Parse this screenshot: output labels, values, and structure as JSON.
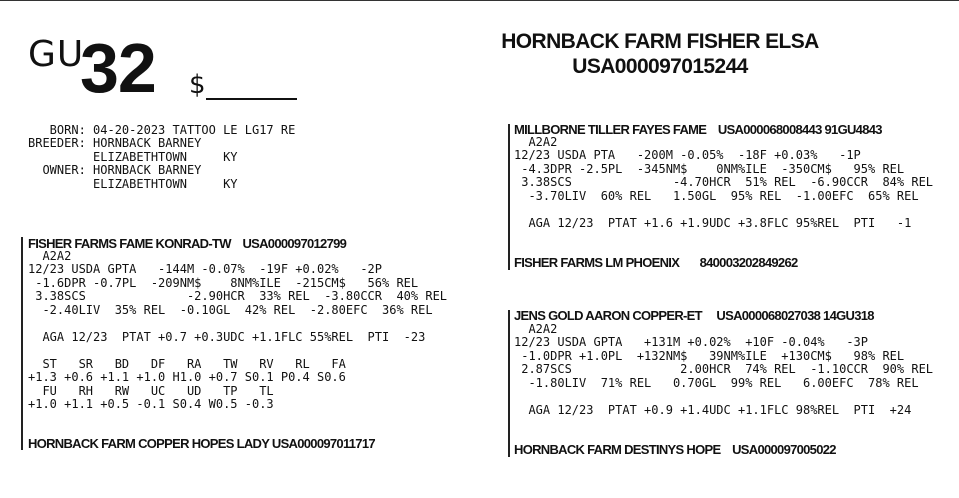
{
  "header": {
    "prefix": "GU",
    "number": "32",
    "price_symbol": "$",
    "title_name": "HORNBACK FARM FISHER ELSA",
    "title_id": "USA000097015244"
  },
  "info_lines": [
    "   BORN: 04-20-2023 TATTOO LE LG17 RE",
    "BREEDER: HORNBACK BARNEY",
    "         ELIZABETHTOWN     KY",
    "  OWNER: HORNBACK BARNEY",
    "         ELIZABETHTOWN     KY"
  ],
  "sire": {
    "heading": "FISHER FARMS FAME KONRAD-TW    USA000097012799",
    "lines": [
      "  A2A2",
      "12/23 USDA GPTA   -144M -0.07%  -19F +0.02%   -2P",
      " -1.6DPR -0.7PL  -209NM$    8NM%ILE  -215CM$   56% REL",
      " 3.38SCS              -2.90HCR  33% REL  -3.80CCR  40% REL",
      "  -2.40LIV  35% REL  -0.10GL  42% REL  -2.80EFC  36% REL",
      "",
      "  AGA 12/23  PTAT +0.7 +0.3UDC +1.1FLC 55%REL  PTI  -23",
      "",
      "  ST   SR   BD   DF   RA   TW   RV   RL   FA",
      "+1.3 +0.6 +1.1 +1.0 H1.0 +0.7 S0.1 P0.4 S0.6",
      "  FU   RH   RW   UC   UD   TP   TL",
      "+1.0 +1.1 +0.5 -0.1 S0.4 W0.5 -0.3"
    ]
  },
  "dam": {
    "heading": "HORNBACK FARM COPPER HOPES LADY USA000097011717"
  },
  "sire_sire": {
    "heading": "MILLBORNE TILLER FAYES FAME    USA000068008443 91GU4843",
    "lines": [
      "  A2A2",
      "12/23 USDA PTA   -200M -0.05%  -18F +0.03%   -1P",
      " -4.3DPR -2.5PL  -345NM$    0NM%ILE  -350CM$   95% REL",
      " 3.38SCS              -4.70HCR  51% REL  -6.90CCR  84% REL",
      "  -3.70LIV  60% REL   1.50GL  95% REL  -1.00EFC  65% REL",
      "",
      "  AGA 12/23  PTAT +1.6 +1.9UDC +3.8FLC 95%REL  PTI   -1"
    ]
  },
  "sire_dam": {
    "heading": "FISHER FARMS LM PHOENIX       840003202849262"
  },
  "dam_sire": {
    "heading": "JENS GOLD AARON COPPER-ET     USA000068027038 14GU318",
    "lines": [
      "  A2A2",
      "12/23 USDA GPTA   +131M +0.02%  +10F -0.04%   -3P",
      " -1.0DPR +1.0PL  +132NM$   39NM%ILE  +130CM$   98% REL",
      " 2.87SCS               2.00HCR  74% REL  -1.10CCR  90% REL",
      "  -1.80LIV  71% REL   0.70GL  99% REL   6.00EFC  78% REL",
      "",
      "  AGA 12/23  PTAT +0.9 +1.4UDC +1.1FLC 98%REL  PTI  +24"
    ]
  },
  "dam_dam": {
    "heading": "HORNBACK FARM DESTINYS HOPE    USA000097005022"
  }
}
